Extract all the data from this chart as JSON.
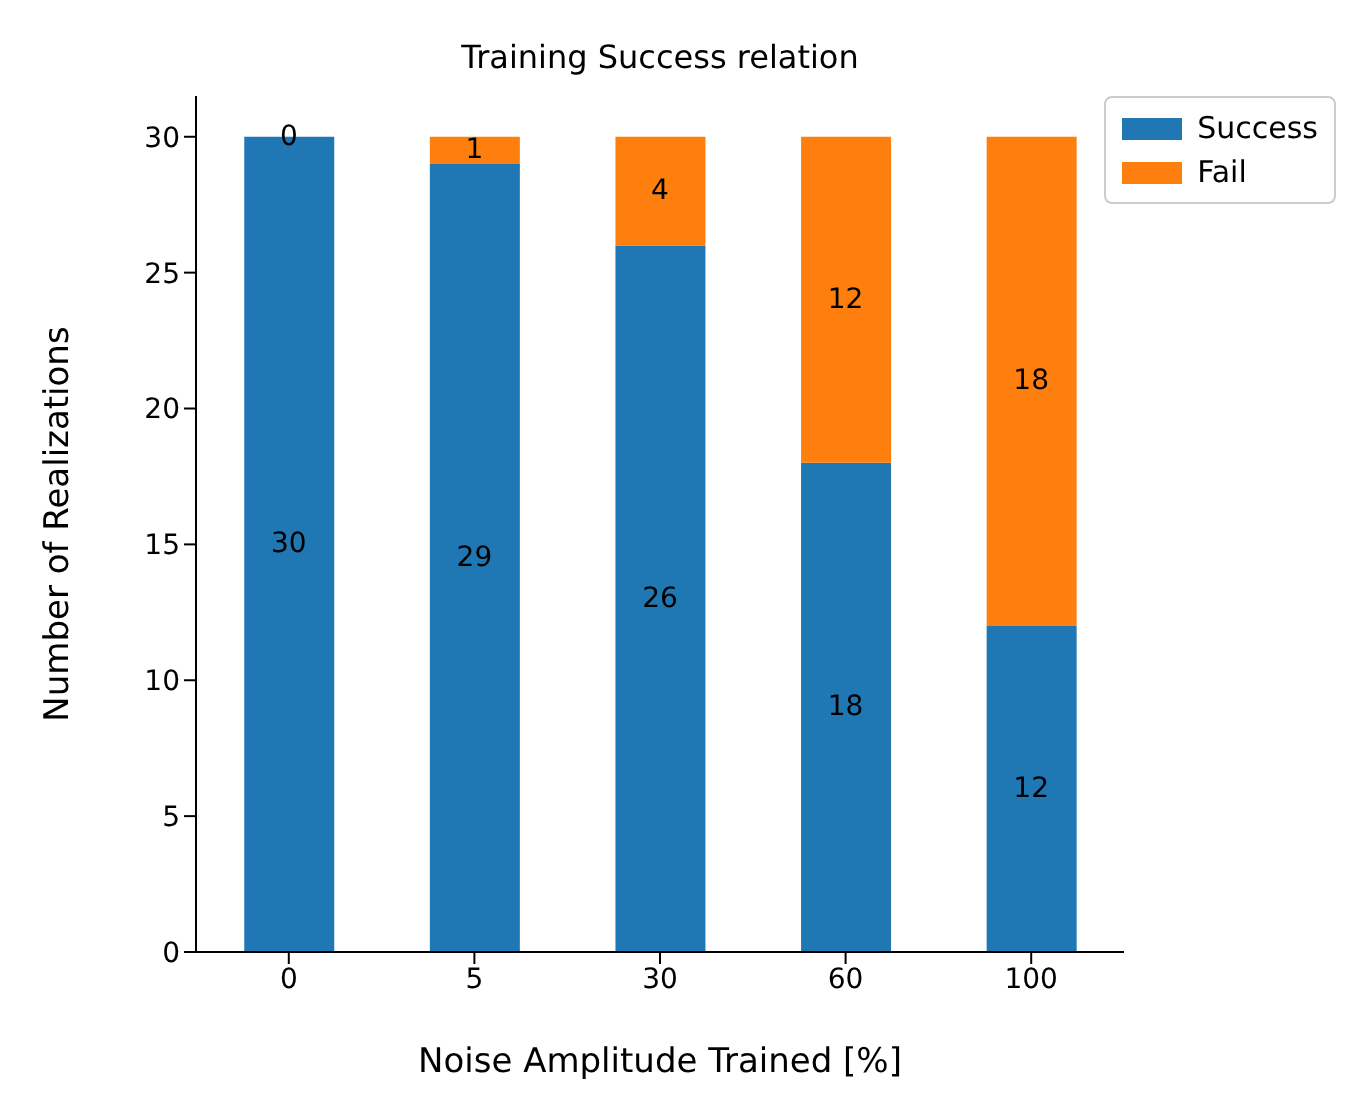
{
  "chart_data": {
    "type": "bar",
    "title": "Training Success relation",
    "xlabel": "Noise Amplitude Trained [%]",
    "ylabel": "Number of Realizations",
    "categories": [
      "0",
      "5",
      "30",
      "60",
      "100"
    ],
    "series": [
      {
        "name": "Success",
        "color": "#1f77b4",
        "values": [
          30,
          29,
          26,
          18,
          12
        ]
      },
      {
        "name": "Fail",
        "color": "#ff7f0e",
        "values": [
          0,
          1,
          4,
          12,
          18
        ]
      }
    ],
    "stacked": true,
    "data_labels": true,
    "ylim": [
      0,
      31.5
    ],
    "yticks": [
      0,
      5,
      10,
      15,
      20,
      25,
      30
    ],
    "grid": false,
    "legend": "top right"
  }
}
